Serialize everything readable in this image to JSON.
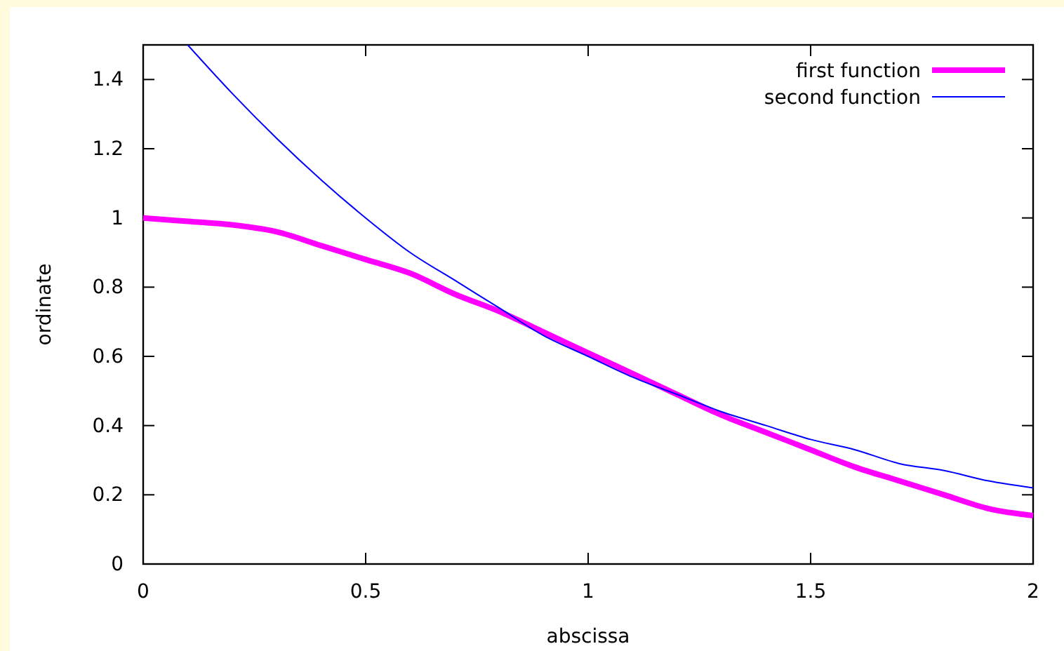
{
  "chart_data": {
    "type": "line",
    "xlabel": "abscissa",
    "ylabel": "ordinate",
    "xlim": [
      0,
      2
    ],
    "ylim": [
      0,
      1.5
    ],
    "xticks": [
      0,
      0.5,
      1,
      1.5,
      2
    ],
    "yticks": [
      0,
      0.2,
      0.4,
      0.6,
      0.8,
      1,
      1.2,
      1.4
    ],
    "grid": false,
    "legend": "top right",
    "marker": "none",
    "line_style": "solid",
    "series": [
      {
        "name": "first function",
        "color": "#ff00ff",
        "x": [
          0,
          0.1,
          0.2,
          0.3,
          0.4,
          0.5,
          0.6,
          0.7,
          0.8,
          0.9,
          1,
          1.1,
          1.2,
          1.3,
          1.4,
          1.5,
          1.6,
          1.7,
          1.8,
          1.9,
          2
        ],
        "values": [
          1,
          0.99,
          0.98,
          0.96,
          0.92,
          0.88,
          0.84,
          0.78,
          0.73,
          0.67,
          0.61,
          0.55,
          0.49,
          0.43,
          0.38,
          0.33,
          0.28,
          0.24,
          0.2,
          0.16,
          0.14
        ]
      },
      {
        "name": "second function",
        "color": "#0000ff",
        "x": [
          0.1,
          0.2,
          0.3,
          0.4,
          0.5,
          0.6,
          0.7,
          0.8,
          0.9,
          1,
          1.1,
          1.2,
          1.3,
          1.4,
          1.5,
          1.6,
          1.7,
          1.8,
          1.9,
          2
        ],
        "values": [
          1.5,
          1.36,
          1.23,
          1.11,
          1.0,
          0.9,
          0.82,
          0.74,
          0.66,
          0.6,
          0.54,
          0.49,
          0.44,
          0.4,
          0.36,
          0.33,
          0.29,
          0.27,
          0.24,
          0.22
        ]
      }
    ]
  }
}
